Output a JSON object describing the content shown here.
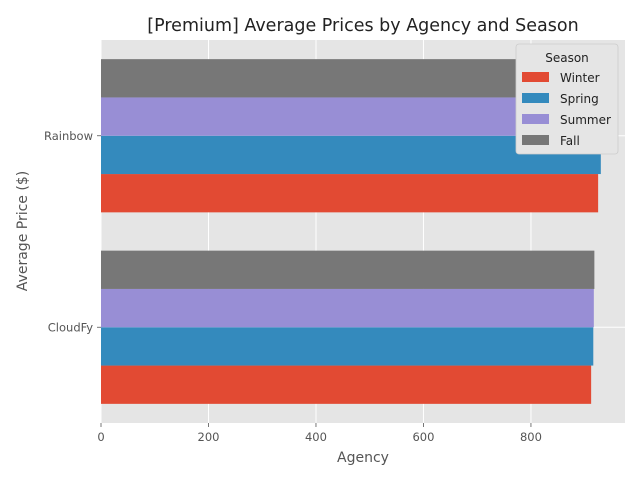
{
  "chart_data": {
    "type": "bar",
    "orientation": "horizontal",
    "title": "[Premium] Average Prices by Agency and Season",
    "xlabel": "Agency",
    "ylabel": "Average Price ($)",
    "categories": [
      "CloudFy",
      "Rainbow"
    ],
    "series": [
      {
        "name": "Winter",
        "color": "#E24A33",
        "values": [
          912,
          925
        ]
      },
      {
        "name": "Spring",
        "color": "#348ABD",
        "values": [
          916,
          930
        ]
      },
      {
        "name": "Summer",
        "color": "#988ED5",
        "values": [
          917,
          926
        ]
      },
      {
        "name": "Fall",
        "color": "#777777",
        "values": [
          918,
          920
        ]
      }
    ],
    "xlim": [
      0,
      975
    ],
    "xticks": [
      0,
      200,
      400,
      600,
      800
    ],
    "grid": true,
    "legend": {
      "title": "Season",
      "placement": "top-right"
    },
    "colors": {
      "plot_background": "#E5E5E5",
      "grid": "#FFFFFF"
    }
  }
}
